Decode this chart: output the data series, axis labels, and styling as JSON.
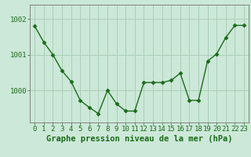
{
  "x": [
    0,
    1,
    2,
    3,
    4,
    5,
    6,
    7,
    8,
    9,
    10,
    11,
    12,
    13,
    14,
    15,
    16,
    17,
    18,
    19,
    20,
    21,
    22,
    23
  ],
  "y": [
    1001.8,
    1001.35,
    1001.0,
    1000.55,
    1000.25,
    999.72,
    999.52,
    999.35,
    1000.0,
    999.62,
    999.42,
    999.42,
    1000.22,
    1000.22,
    1000.22,
    1000.28,
    1000.48,
    999.72,
    999.72,
    1000.82,
    1001.02,
    1001.48,
    1001.82,
    1001.82
  ],
  "line_color": "#1a6b1a",
  "marker": "D",
  "marker_size": 2.5,
  "bg_color": "#cce8d8",
  "plot_bg_color": "#cce8d8",
  "grid_color": "#aacfba",
  "xlabel": "Graphe pression niveau de la mer (hPa)",
  "xlabel_fontsize": 7.5,
  "xlabel_color": "#1a6b1a",
  "ytick_labels": [
    "1002",
    "1001",
    "1000"
  ],
  "ytick_values": [
    1002,
    1001,
    1000
  ],
  "ylim": [
    999.1,
    1002.4
  ],
  "xlim": [
    -0.5,
    23.5
  ],
  "tick_color": "#1a6b1a",
  "tick_fontsize": 6.5,
  "linewidth": 1.0
}
